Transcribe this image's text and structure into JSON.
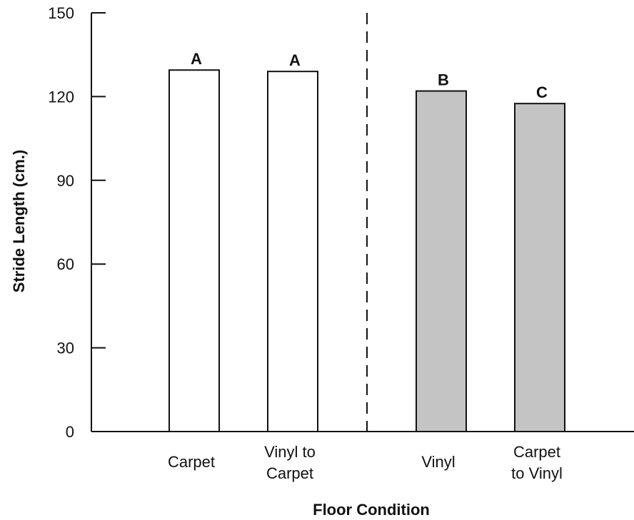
{
  "chart_data": {
    "type": "bar",
    "title": "",
    "xlabel": "Floor Condition",
    "ylabel": "Stride Length (cm.)",
    "ylim": [
      0,
      150
    ],
    "yticks": [
      0,
      30,
      60,
      90,
      120,
      150
    ],
    "grid": false,
    "legend": "none",
    "categories": [
      [
        "Carpet"
      ],
      [
        "Vinyl to",
        "Carpet"
      ],
      [
        "Vinyl"
      ],
      [
        "Carpet",
        "to Vinyl"
      ]
    ],
    "values": [
      129.5,
      129,
      122,
      117.5
    ],
    "group_letters": [
      "A",
      "A",
      "B",
      "C"
    ],
    "colors": {
      "bar_fills": [
        "#ffffff",
        "#ffffff",
        "#c4c4c4",
        "#c4c4c4"
      ],
      "stroke": "#111111"
    },
    "divider": {
      "style": "dashed",
      "between_categories": [
        1,
        2
      ]
    }
  }
}
